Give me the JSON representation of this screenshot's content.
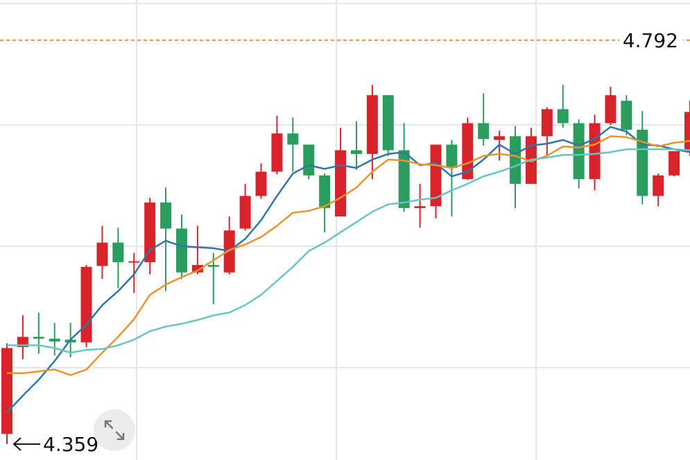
{
  "chart_data": {
    "type": "candlestick",
    "ylim": [
      4.342,
      4.835
    ],
    "up_color": "#d9232a",
    "down_color": "#2a9d5c",
    "open": [
      4.37,
      4.463,
      4.474,
      4.472,
      4.471,
      4.468,
      4.55,
      4.575,
      4.554,
      4.554,
      4.618,
      4.59,
      4.543,
      4.551,
      4.543,
      4.59,
      4.625,
      4.651,
      4.692,
      4.68,
      4.647,
      4.603,
      4.674,
      4.67,
      4.733,
      4.674,
      4.612,
      4.614,
      4.68,
      4.643,
      4.703,
      4.685,
      4.689,
      4.638,
      4.689,
      4.718,
      4.703,
      4.643,
      4.703,
      4.727,
      4.696,
      4.625,
      4.647,
      4.673
    ],
    "high": [
      4.467,
      4.497,
      4.5,
      4.489,
      4.489,
      4.551,
      4.593,
      4.591,
      4.564,
      4.623,
      4.634,
      4.605,
      4.593,
      4.564,
      4.603,
      4.638,
      4.66,
      4.711,
      4.709,
      4.68,
      4.649,
      4.698,
      4.705,
      4.744,
      4.733,
      4.703,
      4.638,
      4.68,
      4.685,
      4.709,
      4.735,
      4.695,
      4.7,
      4.698,
      4.72,
      4.744,
      4.707,
      4.712,
      4.742,
      4.733,
      4.716,
      4.649,
      4.673,
      4.727
    ],
    "low": [
      4.359,
      4.45,
      4.456,
      4.454,
      4.452,
      4.463,
      4.536,
      4.526,
      4.521,
      4.541,
      4.523,
      4.536,
      4.541,
      4.509,
      4.541,
      4.588,
      4.622,
      4.648,
      4.651,
      4.643,
      4.586,
      4.603,
      4.653,
      4.643,
      4.668,
      4.608,
      4.591,
      4.601,
      4.603,
      4.642,
      4.679,
      4.663,
      4.612,
      4.638,
      4.668,
      4.698,
      4.633,
      4.631,
      4.701,
      4.69,
      4.616,
      4.614,
      4.646,
      4.668
    ],
    "close": [
      4.462,
      4.474,
      4.472,
      4.469,
      4.468,
      4.549,
      4.575,
      4.554,
      4.555,
      4.618,
      4.59,
      4.543,
      4.551,
      4.549,
      4.588,
      4.625,
      4.651,
      4.692,
      4.68,
      4.647,
      4.612,
      4.674,
      4.67,
      4.733,
      4.674,
      4.612,
      4.614,
      4.68,
      4.655,
      4.703,
      4.686,
      4.689,
      4.638,
      4.689,
      4.718,
      4.703,
      4.643,
      4.703,
      4.733,
      4.696,
      4.625,
      4.647,
      4.673,
      4.715
    ],
    "series": [
      {
        "color": "#2c77a8",
        "values": [
          4.393,
          4.411,
          4.428,
          4.448,
          4.471,
          4.487,
          4.508,
          4.523,
          4.541,
          4.567,
          4.577,
          4.571,
          4.57,
          4.569,
          4.566,
          4.579,
          4.599,
          4.625,
          4.649,
          4.658,
          4.654,
          4.658,
          4.655,
          4.664,
          4.67,
          4.672,
          4.658,
          4.66,
          4.646,
          4.651,
          4.664,
          4.68,
          4.67,
          4.679,
          4.681,
          4.685,
          4.679,
          4.686,
          4.699,
          4.694,
          4.68,
          4.679,
          4.675,
          4.672
        ]
      },
      {
        "color": "#f0922b",
        "values": [
          4.435,
          4.435,
          4.437,
          4.439,
          4.433,
          4.439,
          4.457,
          4.474,
          4.493,
          4.519,
          4.53,
          4.538,
          4.545,
          4.556,
          4.567,
          4.573,
          4.581,
          4.593,
          4.607,
          4.609,
          4.614,
          4.623,
          4.634,
          4.651,
          4.664,
          4.663,
          4.659,
          4.658,
          4.655,
          4.66,
          4.668,
          4.67,
          4.668,
          4.662,
          4.668,
          4.678,
          4.677,
          4.68,
          4.689,
          4.688,
          4.683,
          4.678,
          4.682,
          4.684
        ]
      },
      {
        "color": "#67c5c3",
        "values": [
          4.465,
          4.465,
          4.465,
          4.462,
          4.457,
          4.46,
          4.461,
          4.465,
          4.471,
          4.48,
          4.485,
          4.488,
          4.492,
          4.497,
          4.5,
          4.508,
          4.519,
          4.534,
          4.549,
          4.566,
          4.575,
          4.586,
          4.597,
          4.608,
          4.616,
          4.618,
          4.621,
          4.623,
          4.631,
          4.638,
          4.646,
          4.651,
          4.657,
          4.664,
          4.666,
          4.669,
          4.669,
          4.67,
          4.672,
          4.675,
          4.675,
          4.675,
          4.675,
          4.674
        ]
      }
    ],
    "reference_line": {
      "value": 4.792,
      "color": "#f0922b"
    },
    "low_label": 4.359
  }
}
